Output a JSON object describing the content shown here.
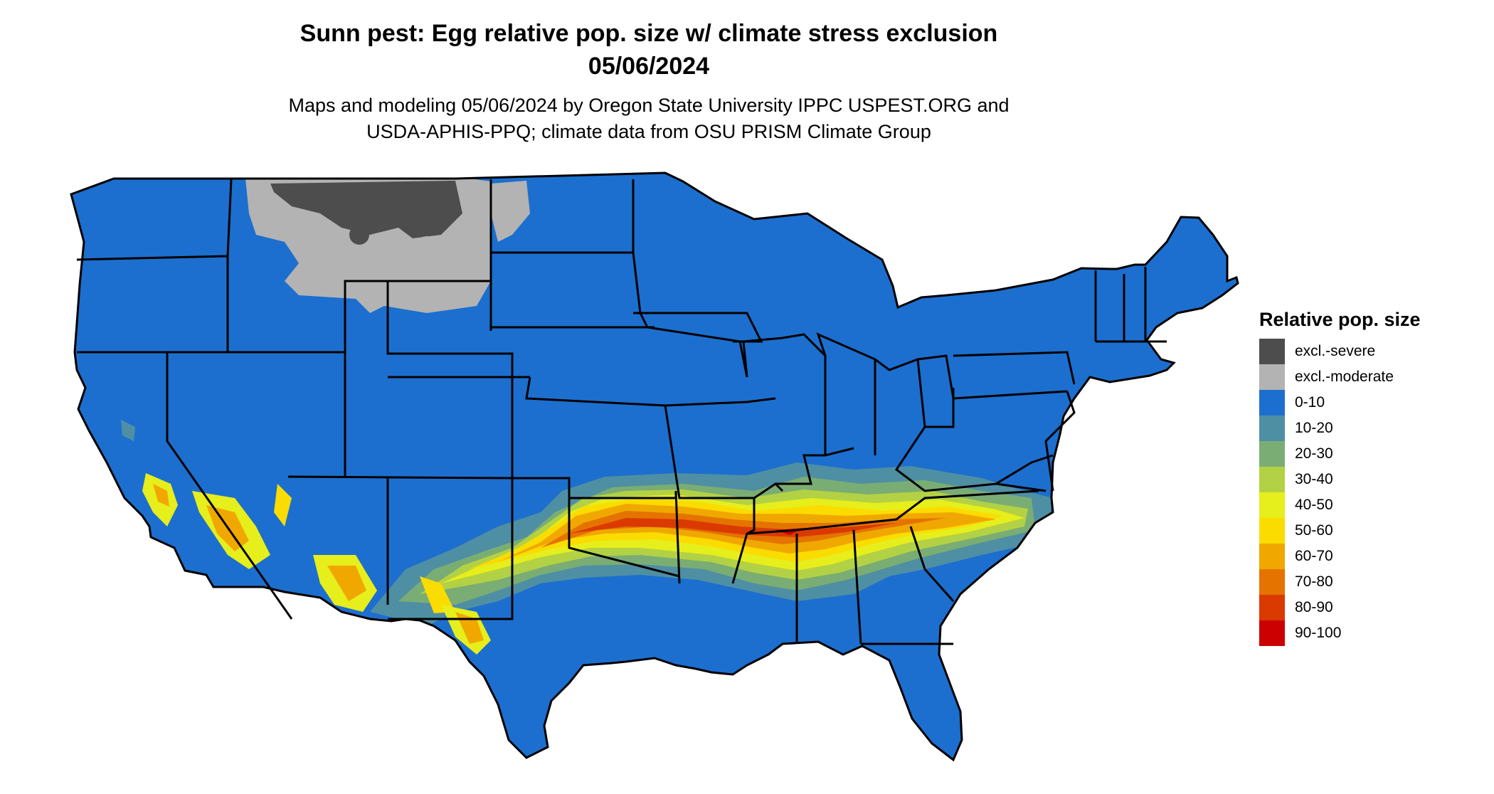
{
  "title": {
    "line1": "Sunn pest: Egg relative pop. size w/ climate stress exclusion",
    "line2": "05/06/2024"
  },
  "subtitle": {
    "line1": "Maps and modeling 05/06/2024 by Oregon State University IPPC USPEST.ORG and",
    "line2": "USDA-APHIS-PPQ; climate data from OSU PRISM Climate Group"
  },
  "legend": {
    "title": "Relative pop. size",
    "items": [
      {
        "label": "excl.-severe",
        "color": "#4d4d4d"
      },
      {
        "label": "excl.-moderate",
        "color": "#b3b3b3"
      },
      {
        "label": "0-10",
        "color": "#1c6fce"
      },
      {
        "label": "10-20",
        "color": "#4f8fa3"
      },
      {
        "label": "20-30",
        "color": "#7aad74"
      },
      {
        "label": "30-40",
        "color": "#b3d144"
      },
      {
        "label": "40-50",
        "color": "#e6ee1c"
      },
      {
        "label": "50-60",
        "color": "#fbdc00"
      },
      {
        "label": "60-70",
        "color": "#f0a800"
      },
      {
        "label": "70-80",
        "color": "#e57300"
      },
      {
        "label": "80-90",
        "color": "#da3a00"
      },
      {
        "label": "90-100",
        "color": "#cc0000"
      }
    ]
  },
  "map": {
    "region": "contiguous United States",
    "border_color": "#000000",
    "base_color": "#1c6fce"
  }
}
